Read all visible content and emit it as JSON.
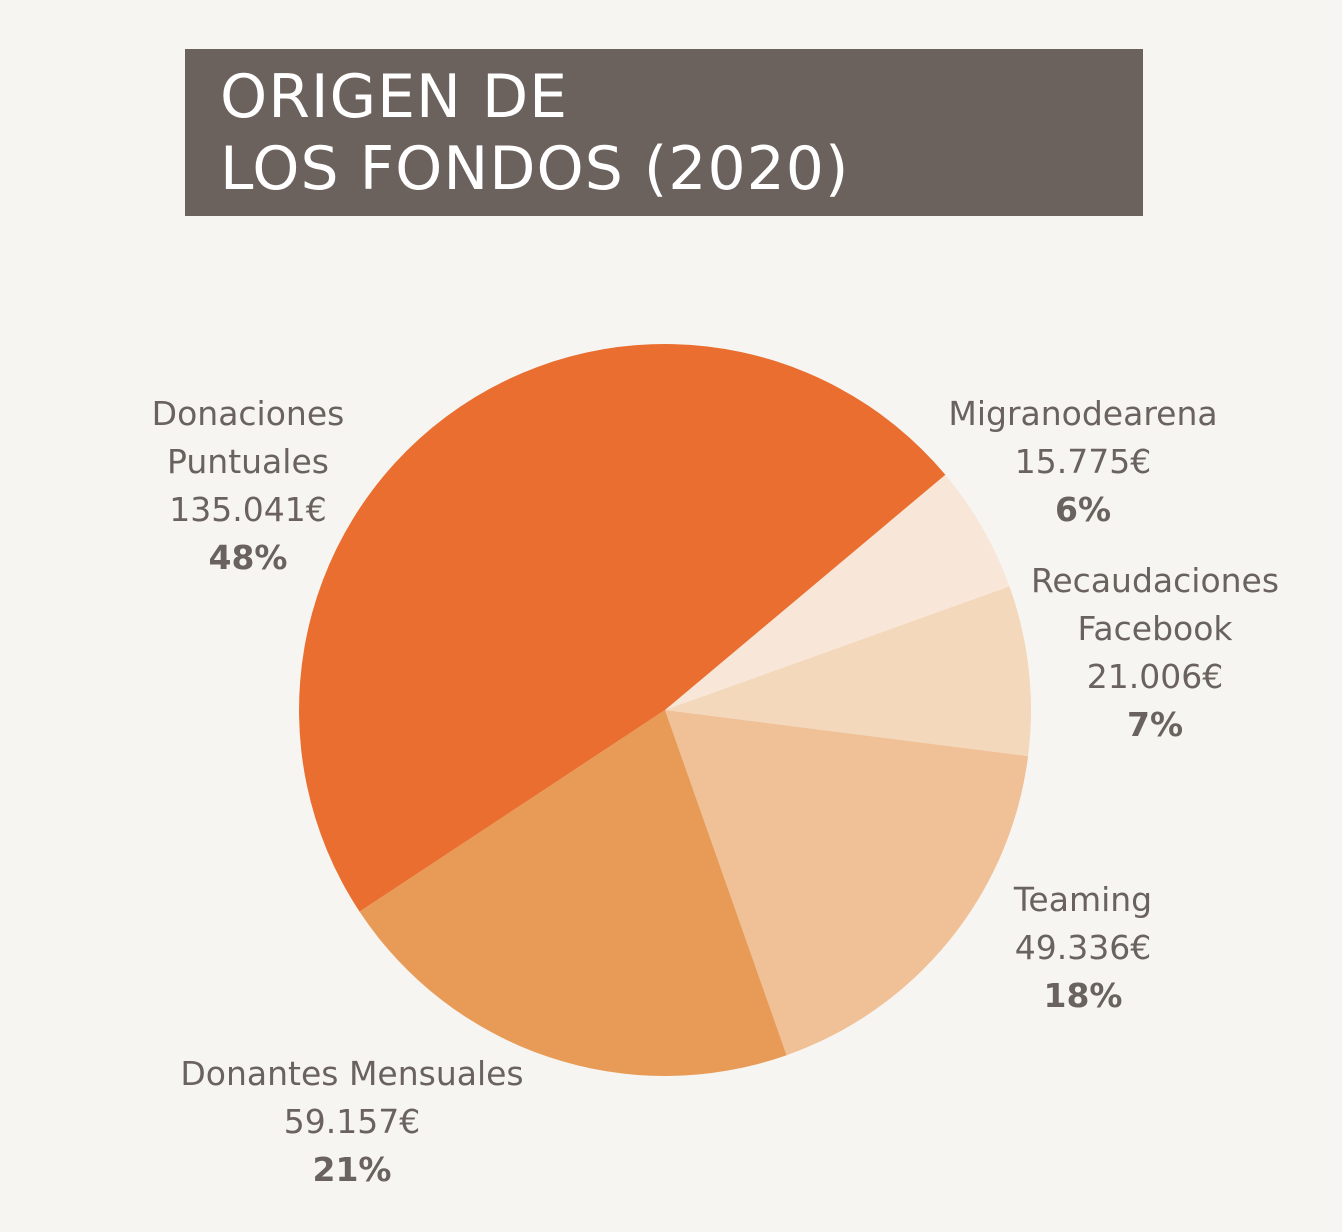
{
  "title": {
    "line1": "ORIGEN DE",
    "line2": "LOS FONDOS (2020)"
  },
  "colors": {
    "title_bg": "#6b615d",
    "background": "#f7f5f1",
    "label_text": "#6a625e"
  },
  "chart_data": {
    "type": "pie",
    "title": "ORIGEN DE LOS FONDOS (2020)",
    "start_angle_deg": -40,
    "slices": [
      {
        "name_lines": [
          "Migranodearena"
        ],
        "amount": "15.775€",
        "percent_label": "6%",
        "value": 15775,
        "color": "#f8e7d8"
      },
      {
        "name_lines": [
          "Recaudaciones",
          "Facebook"
        ],
        "amount": "21.006€",
        "percent_label": "7%",
        "value": 21006,
        "color": "#f4d8bc"
      },
      {
        "name_lines": [
          "Teaming"
        ],
        "amount": "49.336€",
        "percent_label": "18%",
        "value": 49336,
        "color": "#f0c097"
      },
      {
        "name_lines": [
          "Donantes Mensuales"
        ],
        "amount": "59.157€",
        "percent_label": "21%",
        "value": 59157,
        "color": "#e89b57"
      },
      {
        "name_lines": [
          "Donaciones",
          "Puntuales"
        ],
        "amount": "135.041€",
        "percent_label": "48%",
        "value": 135041,
        "color": "#e96e2f"
      }
    ]
  }
}
